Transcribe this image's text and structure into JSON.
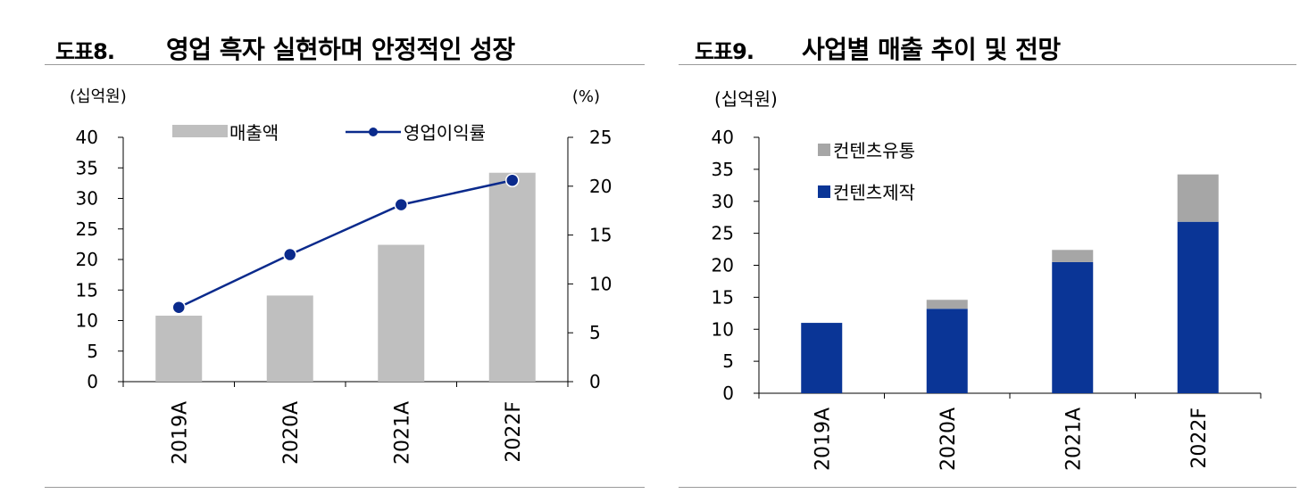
{
  "figures": [
    {
      "number": "도표8.",
      "title": "영업 흑자 실현하며 안정적인 성장"
    },
    {
      "number": "도표9.",
      "title": "사업별 매출 추이 및 전망"
    }
  ],
  "chart_data": [
    {
      "type": "bar",
      "categories": [
        "2019A",
        "2020A",
        "2021A",
        "2022F"
      ],
      "series": [
        {
          "name": "매출액",
          "type": "bar",
          "axis": "left",
          "color": "#bfbfbf",
          "values": [
            10.8,
            14.1,
            22.4,
            34.2
          ]
        },
        {
          "name": "영업이익률",
          "type": "line",
          "axis": "right",
          "color": "#0a2a8c",
          "values": [
            7.6,
            13.0,
            18.1,
            20.6
          ]
        }
      ],
      "ylabel_left": "(십억원)",
      "ylabel_right": "(%)",
      "ylim_left": [
        0,
        40
      ],
      "ylim_right": [
        0,
        25
      ],
      "yticks_left": [
        "0",
        "5",
        "10",
        "15",
        "20",
        "25",
        "30",
        "35",
        "40"
      ],
      "yticks_right": [
        "0",
        "5",
        "10",
        "15",
        "20",
        "25"
      ],
      "legend_position": "top",
      "grid": false
    },
    {
      "type": "bar",
      "stacked": true,
      "categories": [
        "2019A",
        "2020A",
        "2021A",
        "2022F"
      ],
      "series": [
        {
          "name": "컨텐츠제작",
          "color": "#0a3596",
          "values": [
            11.0,
            13.2,
            20.5,
            26.8
          ]
        },
        {
          "name": "컨텐츠유통",
          "color": "#a6a6a6",
          "values": [
            0,
            1.4,
            1.9,
            7.4
          ]
        }
      ],
      "ylabel": "(십억원)",
      "ylim": [
        0,
        40
      ],
      "yticks": [
        "0",
        "5",
        "10",
        "15",
        "20",
        "25",
        "30",
        "35",
        "40"
      ],
      "legend_position": "top-left",
      "grid": false
    }
  ]
}
